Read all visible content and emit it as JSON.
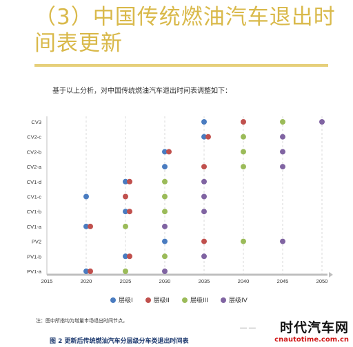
{
  "heading": "（3）中国传统燃油汽车退出时间表更新",
  "intro": "基于以上分析，对中国传统燃油汽车退出时间表调整如下：",
  "note": "注：图中所指均为增量市场退出时间节点。",
  "caption": "图 2 更新后传统燃油汽车分层级分车类退出时间表",
  "watermark": {
    "main": "时代汽车网",
    "url": "cnautotime.com.cn",
    "dashes": "— —"
  },
  "colors": {
    "level1": "#4a7cc0",
    "level2": "#c0504d",
    "level3": "#9bbb59",
    "level4": "#8064a2",
    "title": "#d9b94a",
    "axis": "#bfbfbf"
  },
  "chart_data": {
    "type": "scatter",
    "title": "",
    "xlabel": "",
    "ylabel": "",
    "xlim": [
      2015,
      2050
    ],
    "xticks": [
      2015,
      2020,
      2025,
      2030,
      2035,
      2040,
      2045,
      2050
    ],
    "categories": [
      "CV3",
      "CV2-c",
      "CV2-b",
      "CV2-a",
      "CV1-d",
      "CV1-c",
      "CV1-b",
      "CV1-a",
      "PV2",
      "PV1-b",
      "PV1-a"
    ],
    "grid": "vertical dashed",
    "legend_position": "bottom",
    "series": [
      {
        "name": "层级I",
        "color": "#4a7cc0",
        "points": [
          {
            "x": 2035,
            "y": "CV3"
          },
          {
            "x": 2035,
            "y": "CV2-c"
          },
          {
            "x": 2030,
            "y": "CV2-b"
          },
          {
            "x": 2030,
            "y": "CV2-a"
          },
          {
            "x": 2025,
            "y": "CV1-d"
          },
          {
            "x": 2020,
            "y": "CV1-c"
          },
          {
            "x": 2025,
            "y": "CV1-b"
          },
          {
            "x": 2020,
            "y": "CV1-a"
          },
          {
            "x": 2030,
            "y": "PV2"
          },
          {
            "x": 2025,
            "y": "PV1-b"
          },
          {
            "x": 2020,
            "y": "PV1-a"
          }
        ]
      },
      {
        "name": "层级II",
        "color": "#c0504d",
        "points": [
          {
            "x": 2040,
            "y": "CV3"
          },
          {
            "x": 2035,
            "y": "CV2-c"
          },
          {
            "x": 2030,
            "y": "CV2-b"
          },
          {
            "x": 2035,
            "y": "CV2-a"
          },
          {
            "x": 2025,
            "y": "CV1-d"
          },
          {
            "x": 2025,
            "y": "CV1-c"
          },
          {
            "x": 2025,
            "y": "CV1-b"
          },
          {
            "x": 2020,
            "y": "CV1-a"
          },
          {
            "x": 2035,
            "y": "PV2"
          },
          {
            "x": 2025,
            "y": "PV1-b"
          },
          {
            "x": 2020,
            "y": "PV1-a"
          }
        ]
      },
      {
        "name": "层级III",
        "color": "#9bbb59",
        "points": [
          {
            "x": 2045,
            "y": "CV3"
          },
          {
            "x": 2040,
            "y": "CV2-c"
          },
          {
            "x": 2040,
            "y": "CV2-b"
          },
          {
            "x": 2040,
            "y": "CV2-a"
          },
          {
            "x": 2030,
            "y": "CV1-d"
          },
          {
            "x": 2030,
            "y": "CV1-c"
          },
          {
            "x": 2030,
            "y": "CV1-b"
          },
          {
            "x": 2025,
            "y": "CV1-a"
          },
          {
            "x": 2040,
            "y": "PV2"
          },
          {
            "x": 2030,
            "y": "PV1-b"
          },
          {
            "x": 2025,
            "y": "PV1-a"
          }
        ]
      },
      {
        "name": "层级IV",
        "color": "#8064a2",
        "points": [
          {
            "x": 2050,
            "y": "CV3"
          },
          {
            "x": 2045,
            "y": "CV2-c"
          },
          {
            "x": 2045,
            "y": "CV2-b"
          },
          {
            "x": 2045,
            "y": "CV2-a"
          },
          {
            "x": 2035,
            "y": "CV1-d"
          },
          {
            "x": 2035,
            "y": "CV1-c"
          },
          {
            "x": 2035,
            "y": "CV1-b"
          },
          {
            "x": 2030,
            "y": "CV1-a"
          },
          {
            "x": 2045,
            "y": "PV2"
          },
          {
            "x": 2035,
            "y": "PV1-b"
          },
          {
            "x": 2030,
            "y": "PV1-a"
          }
        ]
      }
    ]
  }
}
